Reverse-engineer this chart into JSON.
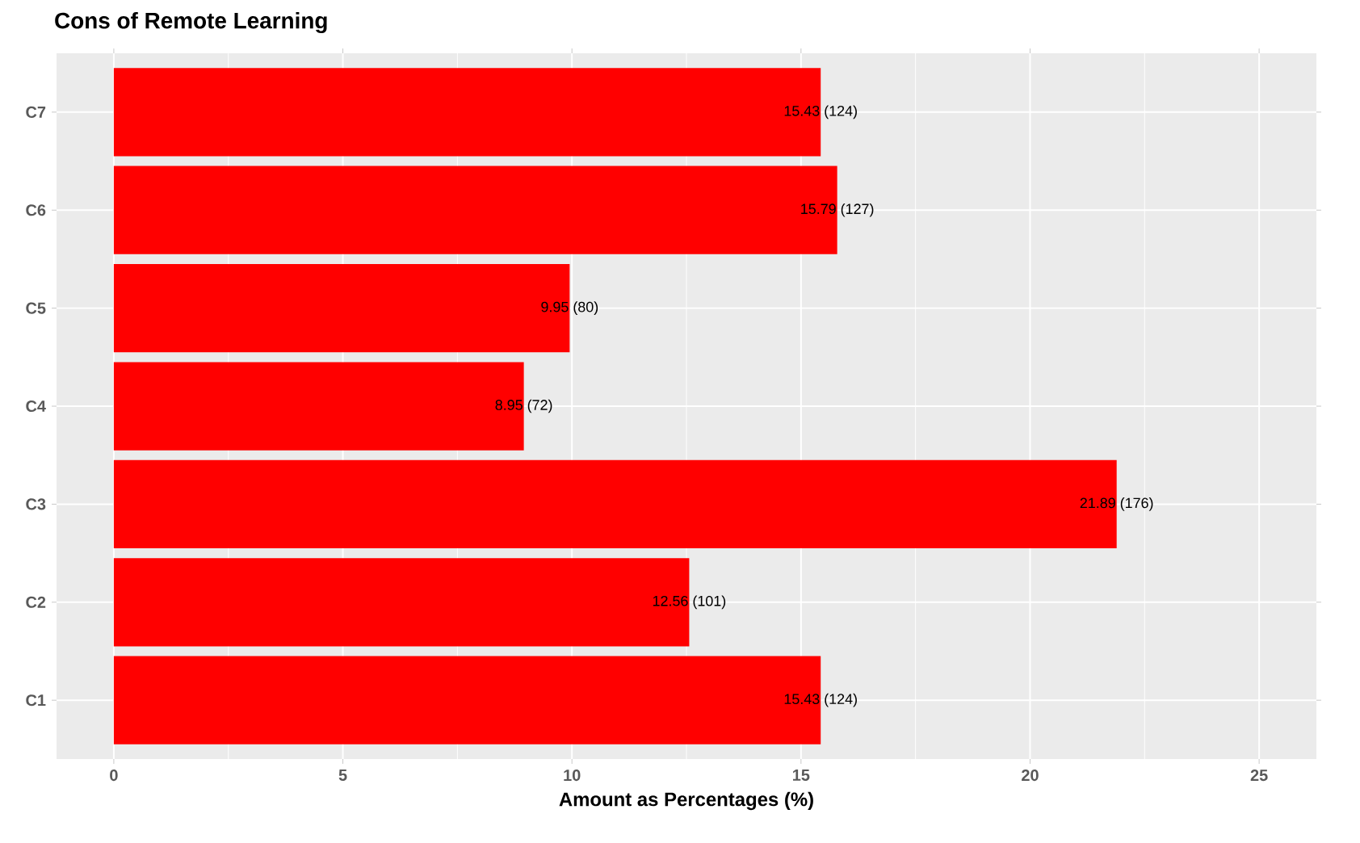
{
  "chart_data": {
    "type": "bar",
    "orientation": "horizontal",
    "title": "Cons of Remote Learning",
    "xlabel": "Amount as Percentages (%)",
    "categories": [
      "C7",
      "C6",
      "C5",
      "C4",
      "C3",
      "C2",
      "C1"
    ],
    "values": [
      15.43,
      15.79,
      9.95,
      8.95,
      21.89,
      12.56,
      15.43
    ],
    "value_labels": [
      "15.43 (124)",
      "15.79 (127)",
      "9.95 (80)",
      "8.95 (72)",
      "21.89 (176)",
      "12.56 (101)",
      "15.43 (124)"
    ],
    "color": "#ff0000",
    "xlim": [
      -1.25,
      26.25
    ],
    "xticks": [
      0,
      5,
      10,
      15,
      20,
      25
    ],
    "grid": true
  }
}
